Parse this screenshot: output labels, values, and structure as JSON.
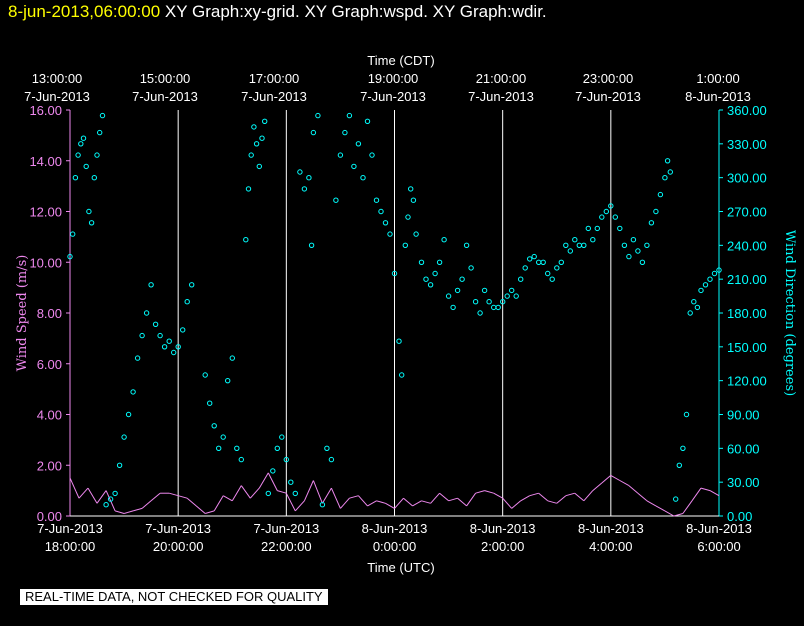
{
  "header": {
    "datetime": "8-jun-2013,06:00:00",
    "title": "XY Graph:xy-grid.  XY Graph:wspd.  XY Graph:wdir."
  },
  "disclaimer": "REAL-TIME DATA, NOT CHECKED FOR QUALITY",
  "colors": {
    "background": "#000000",
    "grid": "#ffffff",
    "wind_speed": "#ee88ee",
    "wind_direction": "#00ffff",
    "header_date": "#ffff00"
  },
  "chart_data": {
    "type": "line",
    "top_axis_title": "Time (CDT)",
    "bottom_axis_title": "Time (UTC)",
    "top_ticks": [
      {
        "time": "13:00:00",
        "date": "7-Jun-2013"
      },
      {
        "time": "15:00:00",
        "date": "7-Jun-2013"
      },
      {
        "time": "17:00:00",
        "date": "7-Jun-2013"
      },
      {
        "time": "19:00:00",
        "date": "7-Jun-2013"
      },
      {
        "time": "21:00:00",
        "date": "7-Jun-2013"
      },
      {
        "time": "23:00:00",
        "date": "7-Jun-2013"
      },
      {
        "time": "1:00:00",
        "date": "8-Jun-2013"
      }
    ],
    "bottom_ticks": [
      {
        "date": "7-Jun-2013",
        "time": "18:00:00"
      },
      {
        "date": "7-Jun-2013",
        "time": "20:00:00"
      },
      {
        "date": "7-Jun-2013",
        "time": "22:00:00"
      },
      {
        "date": "8-Jun-2013",
        "time": "0:00:00"
      },
      {
        "date": "8-Jun-2013",
        "time": "2:00:00"
      },
      {
        "date": "8-Jun-2013",
        "time": "4:00:00"
      },
      {
        "date": "8-Jun-2013",
        "time": "6:00:00"
      }
    ],
    "xlim": [
      "2013-06-07 18:00",
      "2013-06-08 06:00"
    ],
    "left_axis": {
      "label": "Wind Speed (m/s)",
      "ylim": [
        0,
        16
      ],
      "ticks": [
        "0.00",
        "2.00",
        "4.00",
        "6.00",
        "8.00",
        "10.00",
        "12.00",
        "14.00",
        "16.00"
      ]
    },
    "right_axis": {
      "label": "Wind Direction (degrees)",
      "ylim": [
        0,
        360
      ],
      "ticks": [
        "0.00",
        "30.00",
        "60.00",
        "90.00",
        "120.00",
        "150.00",
        "180.00",
        "210.00",
        "240.00",
        "270.00",
        "300.00",
        "330.00",
        "360.00"
      ]
    },
    "grid": "vertical",
    "series": [
      {
        "name": "Wind Speed",
        "style": "line",
        "axis": "left",
        "points": [
          [
            "2013-06-07 18:00",
            1.5
          ],
          [
            "2013-06-07 18:10",
            0.7
          ],
          [
            "2013-06-07 18:20",
            1.1
          ],
          [
            "2013-06-07 18:30",
            0.5
          ],
          [
            "2013-06-07 18:40",
            1.0
          ],
          [
            "2013-06-07 18:50",
            0.2
          ],
          [
            "2013-06-07 19:00",
            0.1
          ],
          [
            "2013-06-07 19:10",
            0.2
          ],
          [
            "2013-06-07 19:20",
            0.3
          ],
          [
            "2013-06-07 19:30",
            0.6
          ],
          [
            "2013-06-07 19:40",
            0.9
          ],
          [
            "2013-06-07 19:50",
            0.9
          ],
          [
            "2013-06-07 20:00",
            0.8
          ],
          [
            "2013-06-07 20:10",
            0.7
          ],
          [
            "2013-06-07 20:20",
            0.4
          ],
          [
            "2013-06-07 20:30",
            0.1
          ],
          [
            "2013-06-07 20:40",
            0.2
          ],
          [
            "2013-06-07 20:50",
            0.8
          ],
          [
            "2013-06-07 21:00",
            0.6
          ],
          [
            "2013-06-07 21:10",
            1.2
          ],
          [
            "2013-06-07 21:20",
            0.7
          ],
          [
            "2013-06-07 21:30",
            1.1
          ],
          [
            "2013-06-07 21:40",
            1.7
          ],
          [
            "2013-06-07 21:50",
            1.0
          ],
          [
            "2013-06-07 22:00",
            0.9
          ],
          [
            "2013-06-07 22:10",
            0.2
          ],
          [
            "2013-06-07 22:20",
            0.6
          ],
          [
            "2013-06-07 22:30",
            1.4
          ],
          [
            "2013-06-07 22:40",
            0.5
          ],
          [
            "2013-06-07 22:50",
            1.1
          ],
          [
            "2013-06-07 23:00",
            0.3
          ],
          [
            "2013-06-07 23:10",
            0.7
          ],
          [
            "2013-06-07 23:20",
            0.8
          ],
          [
            "2013-06-07 23:30",
            0.4
          ],
          [
            "2013-06-07 23:40",
            0.6
          ],
          [
            "2013-06-07 23:50",
            0.5
          ],
          [
            "2013-06-08 00:00",
            0.3
          ],
          [
            "2013-06-08 00:10",
            0.7
          ],
          [
            "2013-06-08 00:20",
            0.4
          ],
          [
            "2013-06-08 00:30",
            0.6
          ],
          [
            "2013-06-08 00:40",
            0.5
          ],
          [
            "2013-06-08 00:50",
            0.9
          ],
          [
            "2013-06-08 01:00",
            0.6
          ],
          [
            "2013-06-08 01:10",
            0.7
          ],
          [
            "2013-06-08 01:20",
            0.4
          ],
          [
            "2013-06-08 01:30",
            0.9
          ],
          [
            "2013-06-08 01:40",
            1.0
          ],
          [
            "2013-06-08 01:50",
            0.9
          ],
          [
            "2013-06-08 02:00",
            0.7
          ],
          [
            "2013-06-08 02:10",
            0.3
          ],
          [
            "2013-06-08 02:20",
            0.6
          ],
          [
            "2013-06-08 02:30",
            0.8
          ],
          [
            "2013-06-08 02:40",
            0.9
          ],
          [
            "2013-06-08 02:50",
            0.6
          ],
          [
            "2013-06-08 03:00",
            0.5
          ],
          [
            "2013-06-08 03:10",
            0.8
          ],
          [
            "2013-06-08 03:20",
            0.9
          ],
          [
            "2013-06-08 03:30",
            0.6
          ],
          [
            "2013-06-08 03:40",
            1.0
          ],
          [
            "2013-06-08 03:50",
            1.3
          ],
          [
            "2013-06-08 04:00",
            1.6
          ],
          [
            "2013-06-08 04:10",
            1.4
          ],
          [
            "2013-06-08 04:20",
            1.2
          ],
          [
            "2013-06-08 04:30",
            0.9
          ],
          [
            "2013-06-08 04:40",
            0.6
          ],
          [
            "2013-06-08 04:50",
            0.4
          ],
          [
            "2013-06-08 05:00",
            0.2
          ],
          [
            "2013-06-08 05:10",
            0.0
          ],
          [
            "2013-06-08 05:20",
            0.1
          ],
          [
            "2013-06-08 05:30",
            0.6
          ],
          [
            "2013-06-08 05:40",
            1.1
          ],
          [
            "2013-06-08 05:50",
            1.0
          ],
          [
            "2013-06-08 06:00",
            0.8
          ]
        ]
      },
      {
        "name": "Wind Direction",
        "style": "scatter",
        "axis": "right",
        "points": [
          [
            "2013-06-07 18:00",
            230
          ],
          [
            "2013-06-07 18:03",
            250
          ],
          [
            "2013-06-07 18:06",
            300
          ],
          [
            "2013-06-07 18:09",
            320
          ],
          [
            "2013-06-07 18:12",
            330
          ],
          [
            "2013-06-07 18:15",
            335
          ],
          [
            "2013-06-07 18:18",
            310
          ],
          [
            "2013-06-07 18:21",
            270
          ],
          [
            "2013-06-07 18:24",
            260
          ],
          [
            "2013-06-07 18:27",
            300
          ],
          [
            "2013-06-07 18:30",
            320
          ],
          [
            "2013-06-07 18:33",
            340
          ],
          [
            "2013-06-07 18:36",
            355
          ],
          [
            "2013-06-07 18:40",
            10
          ],
          [
            "2013-06-07 18:45",
            15
          ],
          [
            "2013-06-07 18:50",
            20
          ],
          [
            "2013-06-07 18:55",
            45
          ],
          [
            "2013-06-07 19:00",
            70
          ],
          [
            "2013-06-07 19:05",
            90
          ],
          [
            "2013-06-07 19:10",
            110
          ],
          [
            "2013-06-07 19:15",
            140
          ],
          [
            "2013-06-07 19:20",
            160
          ],
          [
            "2013-06-07 19:25",
            180
          ],
          [
            "2013-06-07 19:30",
            205
          ],
          [
            "2013-06-07 19:35",
            170
          ],
          [
            "2013-06-07 19:40",
            160
          ],
          [
            "2013-06-07 19:45",
            150
          ],
          [
            "2013-06-07 19:50",
            155
          ],
          [
            "2013-06-07 19:55",
            145
          ],
          [
            "2013-06-07 20:00",
            150
          ],
          [
            "2013-06-07 20:05",
            165
          ],
          [
            "2013-06-07 20:10",
            190
          ],
          [
            "2013-06-07 20:15",
            205
          ],
          [
            "2013-06-07 20:30",
            125
          ],
          [
            "2013-06-07 20:35",
            100
          ],
          [
            "2013-06-07 20:40",
            80
          ],
          [
            "2013-06-07 20:45",
            60
          ],
          [
            "2013-06-07 20:50",
            70
          ],
          [
            "2013-06-07 20:55",
            120
          ],
          [
            "2013-06-07 21:00",
            140
          ],
          [
            "2013-06-07 21:05",
            60
          ],
          [
            "2013-06-07 21:10",
            50
          ],
          [
            "2013-06-07 21:15",
            245
          ],
          [
            "2013-06-07 21:18",
            290
          ],
          [
            "2013-06-07 21:21",
            320
          ],
          [
            "2013-06-07 21:24",
            345
          ],
          [
            "2013-06-07 21:27",
            330
          ],
          [
            "2013-06-07 21:30",
            310
          ],
          [
            "2013-06-07 21:33",
            335
          ],
          [
            "2013-06-07 21:36",
            350
          ],
          [
            "2013-06-07 21:40",
            20
          ],
          [
            "2013-06-07 21:45",
            40
          ],
          [
            "2013-06-07 21:50",
            60
          ],
          [
            "2013-06-07 21:55",
            70
          ],
          [
            "2013-06-07 22:00",
            50
          ],
          [
            "2013-06-07 22:05",
            30
          ],
          [
            "2013-06-07 22:10",
            20
          ],
          [
            "2013-06-07 22:15",
            305
          ],
          [
            "2013-06-07 22:20",
            290
          ],
          [
            "2013-06-07 22:25",
            300
          ],
          [
            "2013-06-07 22:28",
            240
          ],
          [
            "2013-06-07 22:30",
            340
          ],
          [
            "2013-06-07 22:35",
            355
          ],
          [
            "2013-06-07 22:40",
            10
          ],
          [
            "2013-06-07 22:45",
            60
          ],
          [
            "2013-06-07 22:50",
            50
          ],
          [
            "2013-06-07 22:55",
            280
          ],
          [
            "2013-06-07 23:00",
            320
          ],
          [
            "2013-06-07 23:05",
            340
          ],
          [
            "2013-06-07 23:10",
            355
          ],
          [
            "2013-06-07 23:15",
            310
          ],
          [
            "2013-06-07 23:20",
            330
          ],
          [
            "2013-06-07 23:25",
            300
          ],
          [
            "2013-06-07 23:30",
            350
          ],
          [
            "2013-06-07 23:35",
            320
          ],
          [
            "2013-06-07 23:40",
            280
          ],
          [
            "2013-06-07 23:45",
            270
          ],
          [
            "2013-06-07 23:50",
            260
          ],
          [
            "2013-06-07 23:55",
            250
          ],
          [
            "2013-06-08 00:00",
            215
          ],
          [
            "2013-06-08 00:05",
            155
          ],
          [
            "2013-06-08 00:08",
            125
          ],
          [
            "2013-06-08 00:12",
            240
          ],
          [
            "2013-06-08 00:15",
            265
          ],
          [
            "2013-06-08 00:18",
            290
          ],
          [
            "2013-06-08 00:21",
            280
          ],
          [
            "2013-06-08 00:24",
            250
          ],
          [
            "2013-06-08 00:30",
            225
          ],
          [
            "2013-06-08 00:35",
            210
          ],
          [
            "2013-06-08 00:40",
            205
          ],
          [
            "2013-06-08 00:45",
            215
          ],
          [
            "2013-06-08 00:50",
            225
          ],
          [
            "2013-06-08 00:55",
            245
          ],
          [
            "2013-06-08 01:00",
            195
          ],
          [
            "2013-06-08 01:05",
            185
          ],
          [
            "2013-06-08 01:10",
            200
          ],
          [
            "2013-06-08 01:15",
            210
          ],
          [
            "2013-06-08 01:20",
            240
          ],
          [
            "2013-06-08 01:25",
            220
          ],
          [
            "2013-06-08 01:30",
            190
          ],
          [
            "2013-06-08 01:35",
            180
          ],
          [
            "2013-06-08 01:40",
            200
          ],
          [
            "2013-06-08 01:45",
            190
          ],
          [
            "2013-06-08 01:50",
            185
          ],
          [
            "2013-06-08 01:55",
            185
          ],
          [
            "2013-06-08 02:00",
            190
          ],
          [
            "2013-06-08 02:05",
            195
          ],
          [
            "2013-06-08 02:10",
            200
          ],
          [
            "2013-06-08 02:15",
            195
          ],
          [
            "2013-06-08 02:20",
            210
          ],
          [
            "2013-06-08 02:25",
            220
          ],
          [
            "2013-06-08 02:30",
            228
          ],
          [
            "2013-06-08 02:35",
            230
          ],
          [
            "2013-06-08 02:40",
            225
          ],
          [
            "2013-06-08 02:45",
            225
          ],
          [
            "2013-06-08 02:50",
            215
          ],
          [
            "2013-06-08 02:55",
            210
          ],
          [
            "2013-06-08 03:00",
            220
          ],
          [
            "2013-06-08 03:05",
            225
          ],
          [
            "2013-06-08 03:10",
            240
          ],
          [
            "2013-06-08 03:15",
            235
          ],
          [
            "2013-06-08 03:20",
            245
          ],
          [
            "2013-06-08 03:25",
            240
          ],
          [
            "2013-06-08 03:30",
            240
          ],
          [
            "2013-06-08 03:35",
            255
          ],
          [
            "2013-06-08 03:40",
            245
          ],
          [
            "2013-06-08 03:45",
            255
          ],
          [
            "2013-06-08 03:50",
            265
          ],
          [
            "2013-06-08 03:55",
            270
          ],
          [
            "2013-06-08 04:00",
            275
          ],
          [
            "2013-06-08 04:05",
            265
          ],
          [
            "2013-06-08 04:10",
            255
          ],
          [
            "2013-06-08 04:15",
            240
          ],
          [
            "2013-06-08 04:20",
            230
          ],
          [
            "2013-06-08 04:25",
            245
          ],
          [
            "2013-06-08 04:30",
            235
          ],
          [
            "2013-06-08 04:35",
            225
          ],
          [
            "2013-06-08 04:40",
            240
          ],
          [
            "2013-06-08 04:45",
            260
          ],
          [
            "2013-06-08 04:50",
            270
          ],
          [
            "2013-06-08 04:55",
            285
          ],
          [
            "2013-06-08 05:00",
            300
          ],
          [
            "2013-06-08 05:03",
            315
          ],
          [
            "2013-06-08 05:06",
            305
          ],
          [
            "2013-06-08 05:12",
            15
          ],
          [
            "2013-06-08 05:16",
            45
          ],
          [
            "2013-06-08 05:20",
            60
          ],
          [
            "2013-06-08 05:24",
            90
          ],
          [
            "2013-06-08 05:28",
            180
          ],
          [
            "2013-06-08 05:32",
            190
          ],
          [
            "2013-06-08 05:36",
            185
          ],
          [
            "2013-06-08 05:40",
            200
          ],
          [
            "2013-06-08 05:45",
            205
          ],
          [
            "2013-06-08 05:50",
            210
          ],
          [
            "2013-06-08 05:55",
            215
          ],
          [
            "2013-06-08 06:00",
            218
          ]
        ]
      }
    ]
  }
}
